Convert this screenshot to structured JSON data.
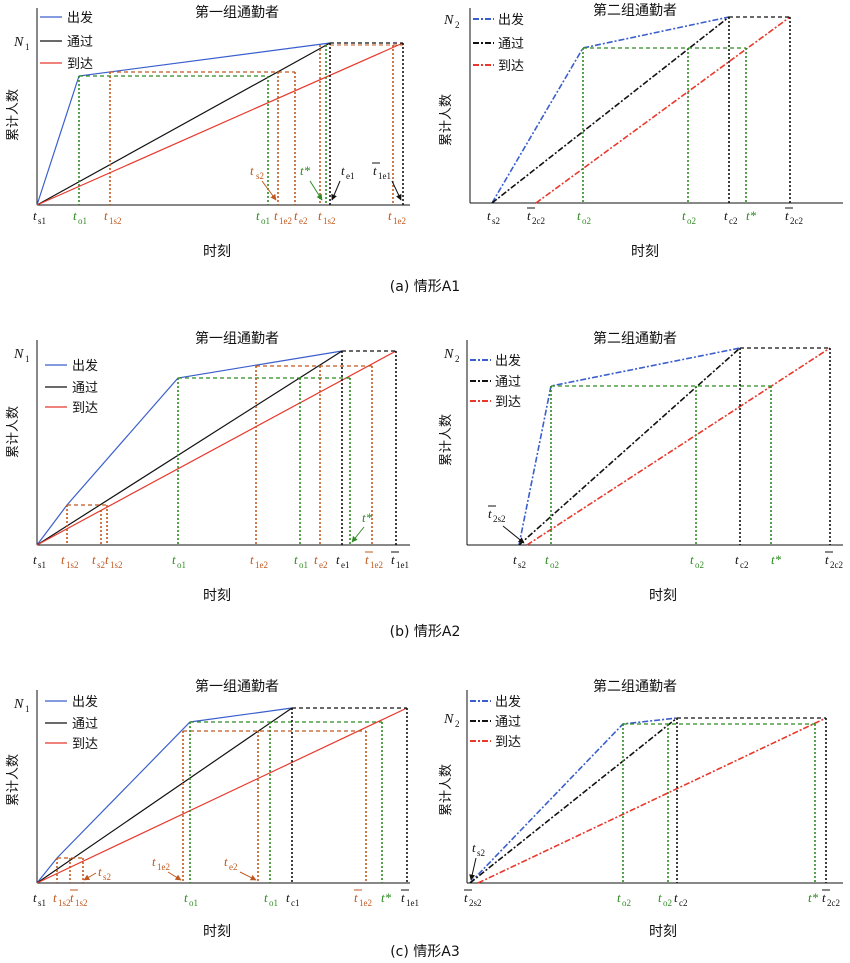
{
  "colors": {
    "depart": "#3a5fcd",
    "pass": "#111111",
    "arrive": "#e8392c",
    "green": "#2e8b22",
    "orange": "#c0581f",
    "black": "#111111"
  },
  "legend": {
    "depart": "出发",
    "pass": "通过",
    "arrive": "到达"
  },
  "common": {
    "group1_title": "第一组通勤者",
    "group2_title": "第二组通勤者",
    "ylabel": "累计人数",
    "xlabel": "时刻",
    "N1": "N",
    "N1_sub": "1",
    "N2": "N",
    "N2_sub": "2"
  },
  "captions": {
    "A1": "(a) 情形A1",
    "A2": "(b) 情形A2",
    "A3": "(c) 情形A3"
  },
  "ticks": {
    "t": "t",
    "t_star": "t*",
    "s1": "s1",
    "o1": "o1",
    "1s2": "1s2",
    "s2": "s2",
    "1e2": "1e2",
    "e2": "e2",
    "e1": "e1",
    "1e1": "1e1",
    "o2": "o2",
    "2c2": "2c2",
    "c2": "c2",
    "2s2": "2s2",
    "c1": "c1"
  }
}
